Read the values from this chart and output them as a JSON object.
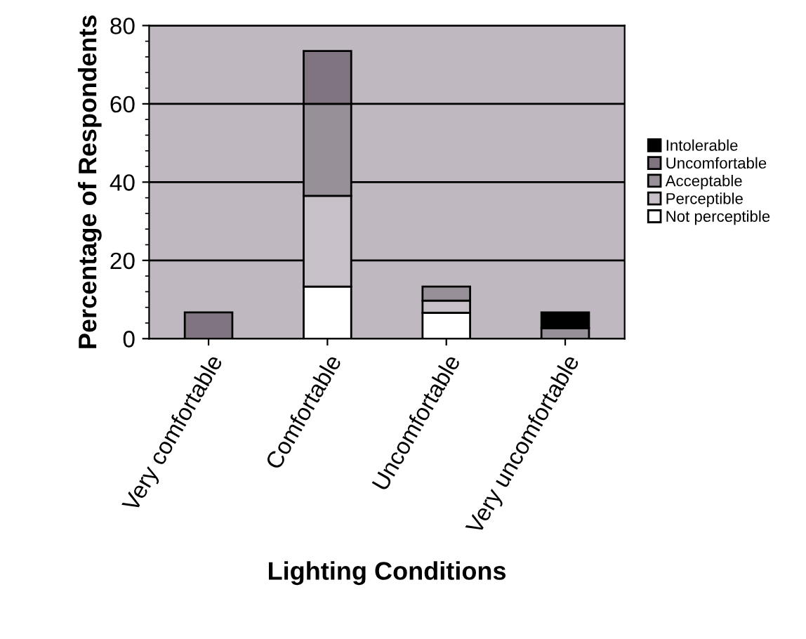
{
  "chart_data": {
    "type": "bar",
    "stacked": true,
    "xlabel": "Lighting Conditions",
    "ylabel": "Percentage of Respondents",
    "categories": [
      "Very comfortable",
      "Comfortable",
      "Uncomfortable",
      "Very uncomfortable"
    ],
    "series": [
      {
        "name": "Not perceptible",
        "color": "#ffffff",
        "values": [
          0,
          13.3,
          6.6,
          0
        ]
      },
      {
        "name": "Perceptible",
        "color": "#c8c0c8",
        "values": [
          0,
          23.2,
          3.1,
          0
        ]
      },
      {
        "name": "Acceptable",
        "color": "#989098",
        "values": [
          0,
          23.5,
          3.6,
          2.7
        ]
      },
      {
        "name": "Uncomfortable",
        "color": "#807480",
        "values": [
          6.7,
          13.5,
          0,
          0
        ]
      },
      {
        "name": "Intolerable",
        "color": "#000000",
        "values": [
          0,
          0,
          0,
          4.0
        ]
      }
    ],
    "ylim": [
      0,
      80
    ],
    "yticks": [
      0,
      20,
      40,
      60,
      80
    ],
    "grid": "y",
    "legend": "right"
  }
}
